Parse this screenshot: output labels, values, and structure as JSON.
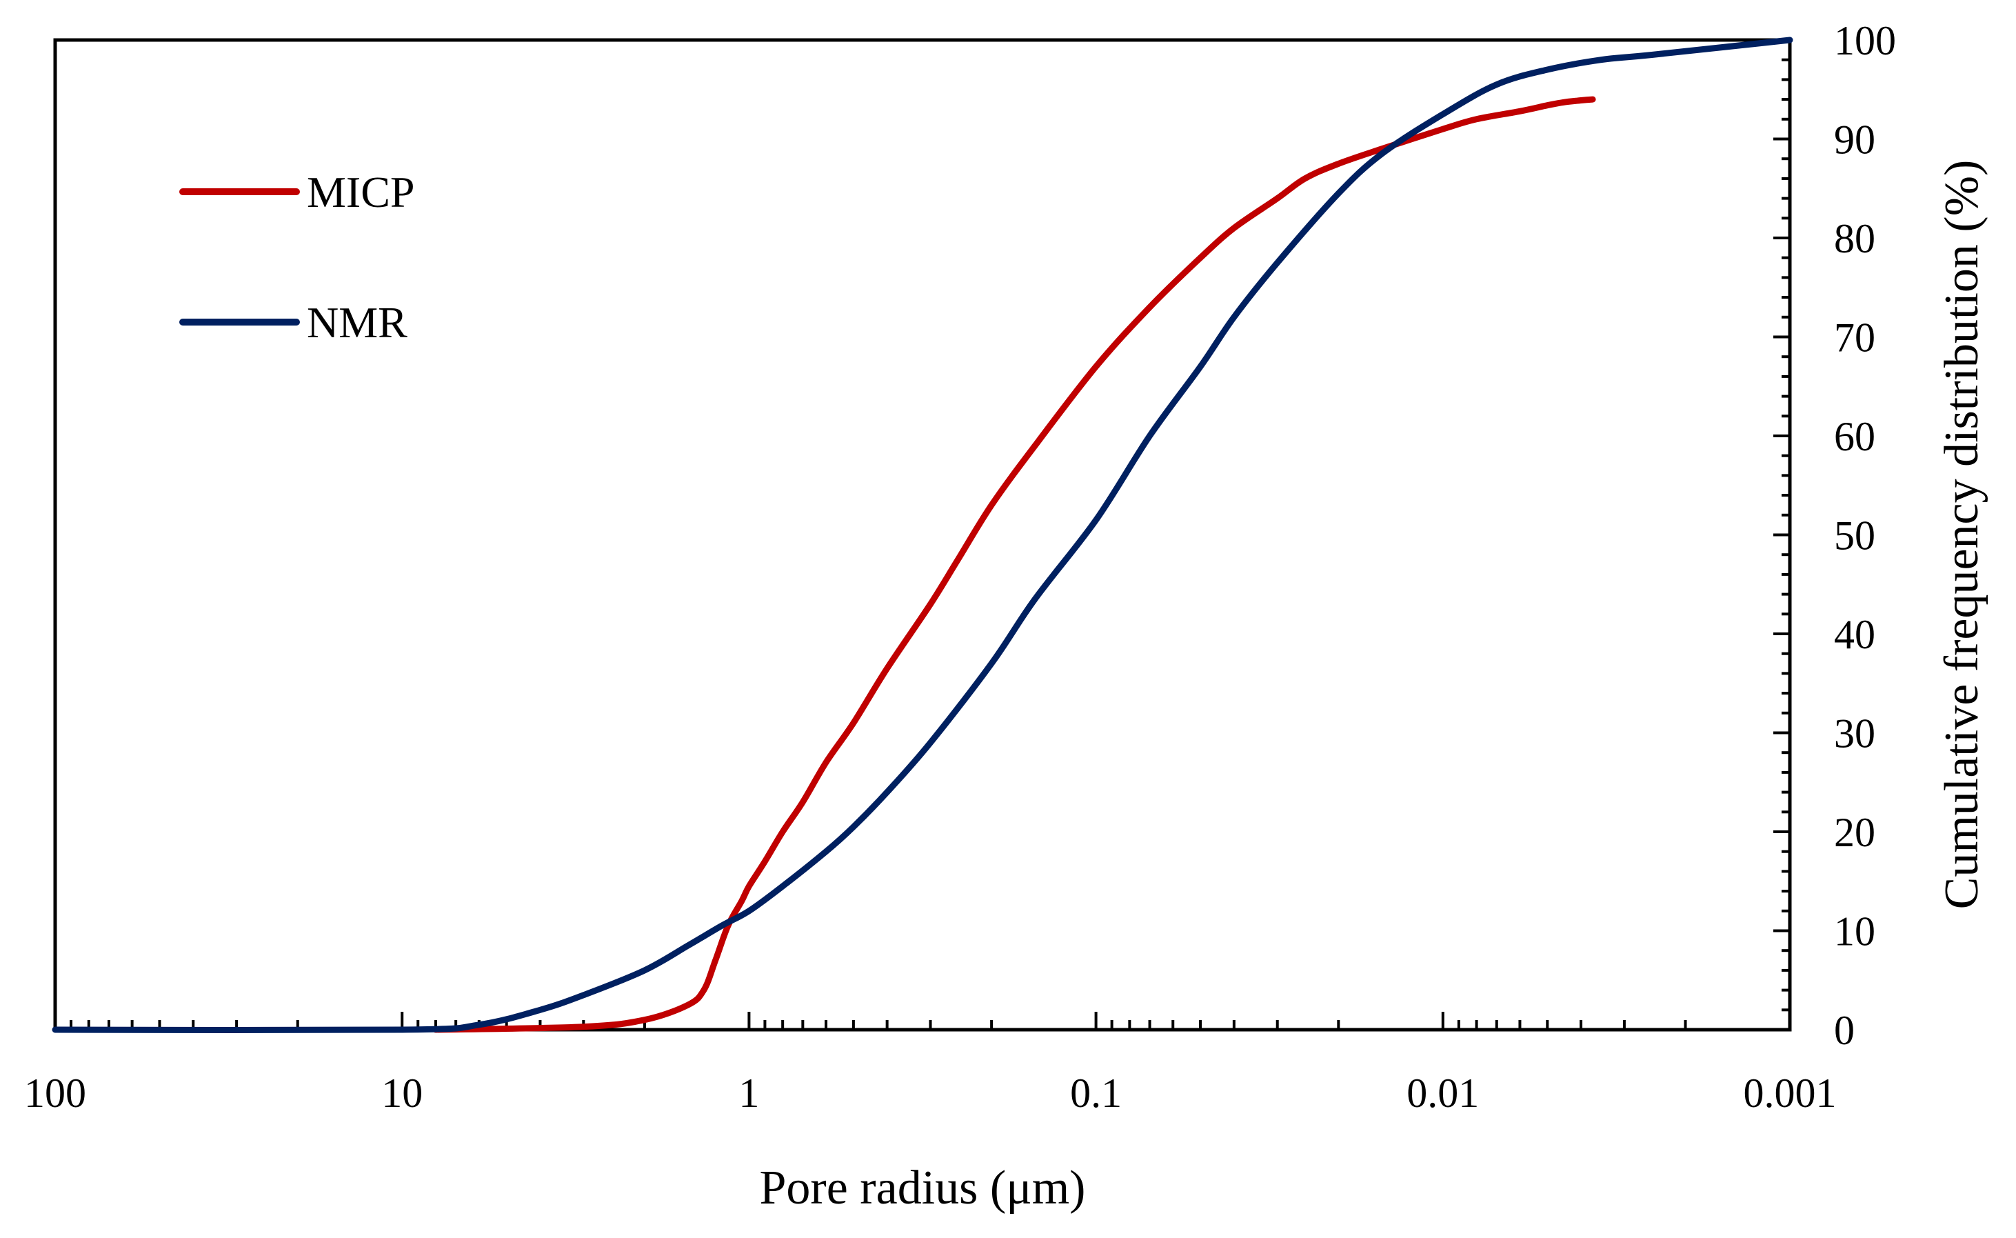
{
  "chart_data": {
    "type": "line",
    "title": "",
    "xlabel": "Pore radius (μm)",
    "ylabel": "Cumulative frequency distribution (%)",
    "x_scale": "log",
    "x_reversed": true,
    "xlim": [
      100,
      0.001
    ],
    "ylim": [
      0,
      100
    ],
    "y_axis_side": "right",
    "grid": false,
    "legend_position": "top-left",
    "x_tick_values": [
      100,
      10,
      1,
      0.1,
      0.01,
      0.001
    ],
    "x_tick_labels": [
      "100",
      "10",
      "1",
      "0.1",
      "0.01",
      "0.001"
    ],
    "y_tick_values": [
      0,
      10,
      20,
      30,
      40,
      50,
      60,
      70,
      80,
      90,
      100
    ],
    "y_tick_labels": [
      "0",
      "10",
      "20",
      "30",
      "40",
      "50",
      "60",
      "70",
      "80",
      "90",
      "100"
    ],
    "series": [
      {
        "name": "MICP",
        "color": "#c00000",
        "x": [
          8,
          3,
          2,
          1.5,
          1.35,
          1.25,
          1.15,
          1.05,
          1.0,
          0.9,
          0.8,
          0.7,
          0.6,
          0.5,
          0.4,
          0.3,
          0.25,
          0.2,
          0.15,
          0.1,
          0.07,
          0.05,
          0.04,
          0.03,
          0.025,
          0.02,
          0.015,
          0.01,
          0.008,
          0.006,
          0.005,
          0.0045,
          0.004,
          0.0037
        ],
        "y": [
          0,
          0.3,
          1,
          2.5,
          4,
          7,
          10.5,
          13,
          14.5,
          17,
          20,
          23,
          27,
          31,
          36.5,
          43,
          47.5,
          53,
          59,
          67,
          73,
          78,
          81,
          84,
          86,
          87.5,
          89,
          91,
          92,
          92.8,
          93.4,
          93.7,
          93.9,
          94
        ]
      },
      {
        "name": "NMR",
        "color": "#002060",
        "x": [
          100,
          10,
          6,
          4,
          3,
          2,
          1.5,
          1.2,
          1.0,
          0.8,
          0.6,
          0.5,
          0.4,
          0.3,
          0.2,
          0.15,
          0.1,
          0.07,
          0.05,
          0.04,
          0.03,
          0.02,
          0.015,
          0.01,
          0.007,
          0.005,
          0.0035,
          0.0025,
          0.001
        ],
        "y": [
          0,
          0,
          0.5,
          2,
          3.5,
          6,
          8.5,
          10.5,
          12,
          14.5,
          18,
          20.5,
          24,
          29,
          37,
          43.5,
          51.5,
          60,
          67,
          72,
          77.5,
          84.5,
          88.5,
          92.5,
          95.5,
          97,
          98,
          98.5,
          100
        ]
      }
    ]
  }
}
